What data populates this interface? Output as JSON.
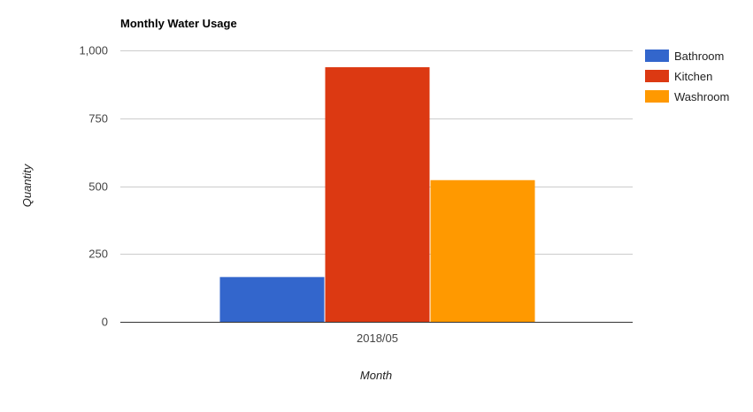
{
  "chart_data": {
    "type": "bar",
    "title": "Monthly Water Usage",
    "xlabel": "Month",
    "ylabel": "Quantity",
    "categories": [
      "2018/05"
    ],
    "series": [
      {
        "name": "Bathroom",
        "values": [
          165
        ],
        "color": "#3366cc"
      },
      {
        "name": "Kitchen",
        "values": [
          938
        ],
        "color": "#dc3912"
      },
      {
        "name": "Washroom",
        "values": [
          522
        ],
        "color": "#ff9900"
      }
    ],
    "ylim": [
      0,
      1000
    ],
    "yticks": [
      0,
      250,
      500,
      750,
      1000
    ],
    "ytick_labels": [
      "0",
      "250",
      "500",
      "750",
      "1,000"
    ],
    "grid": true,
    "legend": "right"
  }
}
